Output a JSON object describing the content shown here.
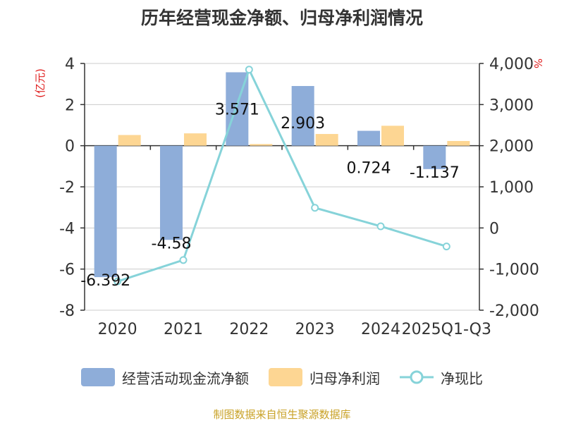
{
  "title": "历年经营现金净额、归母净利润情况",
  "source": "制图数据来自恒生聚源数据库",
  "legend": {
    "cash_flow": "经营活动现金流净额",
    "net_profit": "归母净利润",
    "ratio": "净现比"
  },
  "colors": {
    "cash_flow": "#8eadd9",
    "net_profit": "#fdd693",
    "ratio": "#86d3d9",
    "left_unit": "#e02020",
    "right_unit": "#e02020"
  },
  "chart_data": {
    "type": "bar",
    "categories": [
      "2020",
      "2021",
      "2022",
      "2023",
      "2024",
      "2025Q1-Q3"
    ],
    "left_axis": {
      "unit": "(亿元)",
      "ylim": [
        -8,
        4
      ],
      "ticks": [
        "4",
        "2",
        "0",
        "-2",
        "-4",
        "-6",
        "-8"
      ],
      "tick_values": [
        4,
        2,
        0,
        -2,
        -4,
        -6,
        -8
      ]
    },
    "right_axis": {
      "unit": "%",
      "ylim": [
        -2000,
        4000
      ],
      "ticks": [
        "4,000",
        "3,000",
        "2,000",
        "1,000",
        "0",
        "-1,000",
        "-2,000"
      ],
      "tick_values": [
        4000,
        3000,
        2000,
        1000,
        0,
        -1000,
        -2000
      ]
    },
    "series": [
      {
        "name": "经营活动现金流净额",
        "type": "bar",
        "axis": "left",
        "values": [
          -6.392,
          -4.58,
          3.571,
          2.903,
          0.724,
          -1.137
        ],
        "labels": [
          "-6.392",
          "-4.58",
          "3.571",
          "2.903",
          "0.724",
          "-1.137"
        ]
      },
      {
        "name": "归母净利润",
        "type": "bar",
        "axis": "left",
        "values": [
          0.52,
          0.6,
          0.08,
          0.57,
          0.97,
          0.23
        ]
      },
      {
        "name": "净现比",
        "type": "line",
        "axis": "right",
        "values": [
          -1300,
          -780,
          3850,
          490,
          40,
          -450
        ]
      }
    ],
    "grid": true,
    "legend_position": "bottom"
  }
}
